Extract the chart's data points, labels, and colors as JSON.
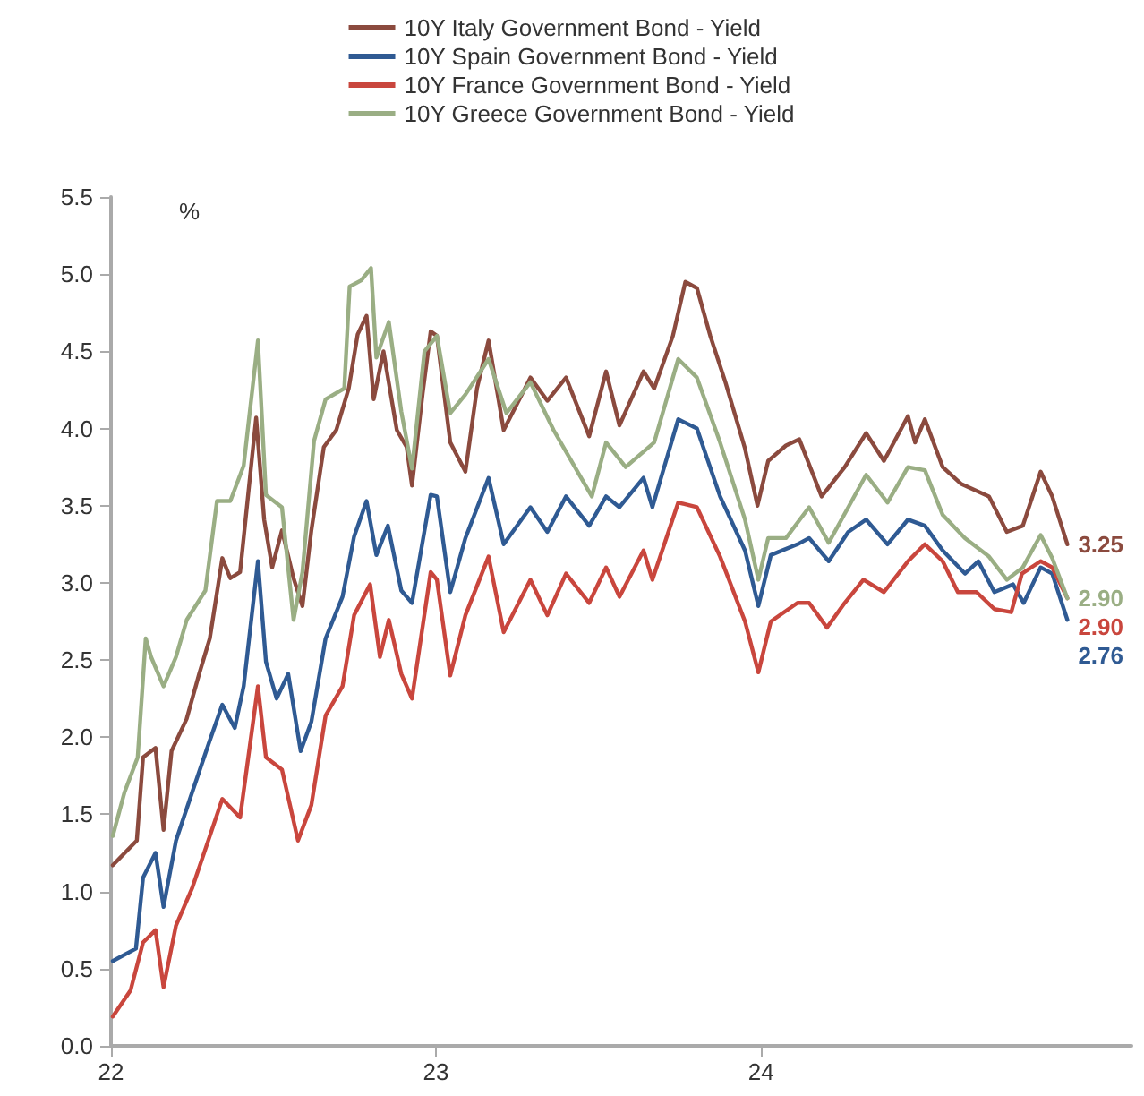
{
  "chart_data": {
    "type": "line",
    "ylabel": "%",
    "legend": "top",
    "grid": false,
    "marker": "none",
    "line_style": "solid",
    "xlim": [
      "2022-01-01",
      "2025-02-20"
    ],
    "xticks": [
      {
        "value": "2022-01-01",
        "label": "22"
      },
      {
        "value": "2023-01-01",
        "label": "23"
      },
      {
        "value": "2024-01-01",
        "label": "24"
      }
    ],
    "ylim": [
      0,
      5.5
    ],
    "yticks": [
      {
        "value": 0,
        "label": "0.0"
      },
      0.5,
      {
        "value": 1,
        "label": "1.0"
      },
      1.5,
      {
        "value": 2,
        "label": "2.0"
      },
      2.5,
      {
        "value": 3,
        "label": "3.0"
      },
      3.5,
      {
        "value": 4,
        "label": "4.0"
      },
      4.5,
      {
        "value": 5,
        "label": "5.0"
      },
      5.5
    ],
    "series": [
      {
        "name": "10Y Italy Government Bond - Yield",
        "color": "#8b4a3e",
        "x": [
          "2022-01-03",
          "2022-01-30",
          "2022-02-06",
          "2022-02-20",
          "2022-03-01",
          "2022-03-10",
          "2022-03-27",
          "2022-04-10",
          "2022-04-22",
          "2022-05-06",
          "2022-05-15",
          "2022-05-26",
          "2022-06-13",
          "2022-06-22",
          "2022-07-01",
          "2022-07-12",
          "2022-07-25",
          "2022-08-04",
          "2022-08-14",
          "2022-08-28",
          "2022-09-11",
          "2022-09-25",
          "2022-10-05",
          "2022-10-15",
          "2022-10-23",
          "2022-11-03",
          "2022-11-18",
          "2022-11-29",
          "2022-12-05",
          "2022-12-17",
          "2022-12-26",
          "2023-01-02",
          "2023-01-17",
          "2023-02-03",
          "2023-02-16",
          "2023-03-01",
          "2023-03-18",
          "2023-04-17",
          "2023-05-06",
          "2023-05-27",
          "2023-06-22",
          "2023-07-11",
          "2023-07-26",
          "2023-08-22",
          "2023-09-03",
          "2023-09-24",
          "2023-10-08",
          "2023-10-21",
          "2023-11-05",
          "2023-11-22",
          "2023-12-14",
          "2023-12-28",
          "2024-01-09",
          "2024-01-29",
          "2024-02-13",
          "2024-03-09",
          "2024-04-04",
          "2024-04-28",
          "2024-05-18",
          "2024-06-14",
          "2024-06-22",
          "2024-07-03",
          "2024-07-23",
          "2024-08-13",
          "2024-09-13",
          "2024-10-03",
          "2024-10-21",
          "2024-11-10",
          "2024-11-23",
          "2024-12-10"
        ],
        "values": [
          1.17,
          1.33,
          1.87,
          1.93,
          1.4,
          1.91,
          2.12,
          2.41,
          2.64,
          3.16,
          3.03,
          3.07,
          4.07,
          3.41,
          3.1,
          3.34,
          3.03,
          2.85,
          3.34,
          3.88,
          3.99,
          4.26,
          4.61,
          4.73,
          4.19,
          4.5,
          3.99,
          3.88,
          3.63,
          4.23,
          4.63,
          4.6,
          3.91,
          3.72,
          4.26,
          4.57,
          3.99,
          4.33,
          4.18,
          4.33,
          3.95,
          4.37,
          4.02,
          4.37,
          4.26,
          4.6,
          4.95,
          4.91,
          4.6,
          4.3,
          3.87,
          3.5,
          3.79,
          3.89,
          3.93,
          3.56,
          3.75,
          3.97,
          3.79,
          4.08,
          3.91,
          4.06,
          3.75,
          3.64,
          3.56,
          3.33,
          3.37,
          3.72,
          3.56,
          3.25
        ],
        "value_labels": [
          null,
          null,
          null,
          null,
          null,
          null,
          null,
          null,
          null,
          null,
          null,
          null,
          null,
          null,
          null,
          null,
          null,
          null,
          null,
          null,
          null,
          null,
          null,
          null,
          null,
          null,
          null,
          null,
          null,
          null,
          null,
          null,
          null,
          null,
          null,
          null,
          null,
          null,
          null,
          null,
          null,
          null,
          null,
          null,
          null,
          null,
          null,
          null,
          null,
          null,
          null,
          null,
          null,
          null,
          null,
          null,
          null,
          null,
          null,
          null,
          null,
          null,
          null,
          null,
          null,
          null,
          null,
          null,
          null,
          "3.25"
        ]
      },
      {
        "name": "10Y Spain Government Bond - Yield",
        "color": "#2f5a93",
        "x": [
          "2022-01-03",
          "2022-01-29",
          "2022-02-06",
          "2022-02-20",
          "2022-03-01",
          "2022-03-15",
          "2022-04-02",
          "2022-04-22",
          "2022-05-06",
          "2022-05-20",
          "2022-05-30",
          "2022-06-15",
          "2022-06-24",
          "2022-07-06",
          "2022-07-19",
          "2022-08-02",
          "2022-08-14",
          "2022-08-30",
          "2022-09-18",
          "2022-10-01",
          "2022-10-15",
          "2022-10-26",
          "2022-11-08",
          "2022-11-23",
          "2022-12-05",
          "2022-12-26",
          "2023-01-02",
          "2023-01-17",
          "2023-02-03",
          "2023-03-01",
          "2023-03-18",
          "2023-04-17",
          "2023-05-06",
          "2023-05-27",
          "2023-06-22",
          "2023-07-11",
          "2023-07-26",
          "2023-08-22",
          "2023-09-01",
          "2023-09-30",
          "2023-10-21",
          "2023-11-16",
          "2023-12-14",
          "2023-12-29",
          "2024-01-12",
          "2024-02-11",
          "2024-02-24",
          "2024-03-17",
          "2024-04-08",
          "2024-04-28",
          "2024-05-22",
          "2024-06-14",
          "2024-07-03",
          "2024-07-23",
          "2024-08-17",
          "2024-09-01",
          "2024-09-19",
          "2024-10-10",
          "2024-10-22",
          "2024-11-10",
          "2024-11-23",
          "2024-12-10"
        ],
        "values": [
          0.55,
          0.63,
          1.09,
          1.25,
          0.9,
          1.33,
          1.64,
          1.98,
          2.21,
          2.06,
          2.33,
          3.14,
          2.49,
          2.25,
          2.41,
          1.91,
          2.1,
          2.64,
          2.91,
          3.3,
          3.53,
          3.18,
          3.37,
          2.95,
          2.87,
          3.57,
          3.56,
          2.94,
          3.29,
          3.68,
          3.25,
          3.49,
          3.33,
          3.56,
          3.37,
          3.56,
          3.49,
          3.68,
          3.49,
          4.06,
          4.0,
          3.56,
          3.21,
          2.85,
          3.18,
          3.25,
          3.29,
          3.14,
          3.33,
          3.41,
          3.25,
          3.41,
          3.37,
          3.21,
          3.06,
          3.14,
          2.94,
          2.99,
          2.87,
          3.1,
          3.06,
          2.76
        ],
        "value_labels": [
          null,
          null,
          null,
          null,
          null,
          null,
          null,
          null,
          null,
          null,
          null,
          null,
          null,
          null,
          null,
          null,
          null,
          null,
          null,
          null,
          null,
          null,
          null,
          null,
          null,
          null,
          null,
          null,
          null,
          null,
          null,
          null,
          null,
          null,
          null,
          null,
          null,
          null,
          null,
          null,
          null,
          null,
          null,
          null,
          null,
          null,
          null,
          null,
          null,
          null,
          null,
          null,
          null,
          null,
          null,
          null,
          null,
          null,
          null,
          null,
          null,
          "2.76"
        ]
      },
      {
        "name": "10Y France Government Bond - Yield",
        "color": "#c9463d",
        "x": [
          "2022-01-03",
          "2022-01-23",
          "2022-02-06",
          "2022-02-20",
          "2022-03-01",
          "2022-03-15",
          "2022-04-02",
          "2022-04-22",
          "2022-05-06",
          "2022-05-26",
          "2022-06-15",
          "2022-06-24",
          "2022-07-12",
          "2022-07-30",
          "2022-08-14",
          "2022-08-30",
          "2022-09-18",
          "2022-10-01",
          "2022-10-19",
          "2022-10-30",
          "2022-11-09",
          "2022-11-23",
          "2022-12-05",
          "2022-12-26",
          "2023-01-02",
          "2023-01-17",
          "2023-02-03",
          "2023-03-01",
          "2023-03-18",
          "2023-04-17",
          "2023-05-06",
          "2023-05-27",
          "2023-06-22",
          "2023-07-11",
          "2023-07-26",
          "2023-08-22",
          "2023-09-01",
          "2023-09-30",
          "2023-10-21",
          "2023-11-16",
          "2023-12-14",
          "2023-12-29",
          "2024-01-12",
          "2024-02-11",
          "2024-02-24",
          "2024-03-15",
          "2024-04-04",
          "2024-04-25",
          "2024-05-18",
          "2024-06-14",
          "2024-07-03",
          "2024-07-23",
          "2024-08-09",
          "2024-08-30",
          "2024-09-19",
          "2024-10-08",
          "2024-10-20",
          "2024-11-10",
          "2024-11-23",
          "2024-12-10"
        ],
        "values": [
          0.19,
          0.36,
          0.67,
          0.75,
          0.38,
          0.78,
          1.02,
          1.36,
          1.6,
          1.48,
          2.33,
          1.87,
          1.79,
          1.33,
          1.56,
          2.14,
          2.33,
          2.79,
          2.99,
          2.52,
          2.76,
          2.41,
          2.25,
          3.07,
          3.02,
          2.4,
          2.79,
          3.17,
          2.68,
          3.02,
          2.79,
          3.06,
          2.87,
          3.1,
          2.91,
          3.21,
          3.02,
          3.52,
          3.49,
          3.17,
          2.75,
          2.42,
          2.75,
          2.87,
          2.87,
          2.71,
          2.87,
          3.02,
          2.94,
          3.14,
          3.25,
          3.14,
          2.94,
          2.94,
          2.83,
          2.81,
          3.06,
          3.14,
          3.1,
          2.9
        ],
        "value_labels": [
          null,
          null,
          null,
          null,
          null,
          null,
          null,
          null,
          null,
          null,
          null,
          null,
          null,
          null,
          null,
          null,
          null,
          null,
          null,
          null,
          null,
          null,
          null,
          null,
          null,
          null,
          null,
          null,
          null,
          null,
          null,
          null,
          null,
          null,
          null,
          null,
          null,
          null,
          null,
          null,
          null,
          null,
          null,
          null,
          null,
          null,
          null,
          null,
          null,
          null,
          null,
          null,
          null,
          null,
          null,
          null,
          null,
          null,
          null,
          "2.90"
        ]
      },
      {
        "name": "10Y Greece Government Bond - Yield",
        "color": "#9aae84",
        "x": [
          "2022-01-03",
          "2022-01-16",
          "2022-01-31",
          "2022-02-09",
          "2022-02-15",
          "2022-03-01",
          "2022-03-15",
          "2022-03-27",
          "2022-04-17",
          "2022-04-30",
          "2022-05-15",
          "2022-05-30",
          "2022-06-15",
          "2022-06-24",
          "2022-07-12",
          "2022-07-25",
          "2022-08-04",
          "2022-08-17",
          "2022-08-30",
          "2022-09-20",
          "2022-09-26",
          "2022-10-09",
          "2022-10-20",
          "2022-10-26",
          "2022-11-09",
          "2022-11-23",
          "2022-12-05",
          "2022-12-19",
          "2023-01-02",
          "2023-01-17",
          "2023-02-03",
          "2023-03-01",
          "2023-03-21",
          "2023-04-17",
          "2023-05-13",
          "2023-06-09",
          "2023-06-25",
          "2023-07-11",
          "2023-08-02",
          "2023-09-03",
          "2023-09-30",
          "2023-10-21",
          "2023-11-16",
          "2023-12-14",
          "2023-12-29",
          "2024-01-09",
          "2024-01-29",
          "2024-02-24",
          "2024-03-17",
          "2024-04-08",
          "2024-04-28",
          "2024-05-22",
          "2024-06-14",
          "2024-07-03",
          "2024-07-23",
          "2024-08-17",
          "2024-09-13",
          "2024-10-03",
          "2024-10-21",
          "2024-11-10",
          "2024-11-23",
          "2024-12-10"
        ],
        "values": [
          1.36,
          1.64,
          1.87,
          2.64,
          2.52,
          2.33,
          2.52,
          2.76,
          2.95,
          3.53,
          3.53,
          3.76,
          4.57,
          3.57,
          3.49,
          2.76,
          3.07,
          3.92,
          4.19,
          4.26,
          4.92,
          4.96,
          5.04,
          4.46,
          4.69,
          4.11,
          3.74,
          4.5,
          4.6,
          4.1,
          4.22,
          4.45,
          4.1,
          4.3,
          3.99,
          3.72,
          3.56,
          3.91,
          3.75,
          3.91,
          4.45,
          4.33,
          3.91,
          3.41,
          3.02,
          3.29,
          3.29,
          3.49,
          3.26,
          3.49,
          3.7,
          3.52,
          3.75,
          3.73,
          3.44,
          3.29,
          3.17,
          3.02,
          3.1,
          3.31,
          3.16,
          2.9
        ],
        "value_labels": [
          null,
          null,
          null,
          null,
          null,
          null,
          null,
          null,
          null,
          null,
          null,
          null,
          null,
          null,
          null,
          null,
          null,
          null,
          null,
          null,
          null,
          null,
          null,
          null,
          null,
          null,
          null,
          null,
          null,
          null,
          null,
          null,
          null,
          null,
          null,
          null,
          null,
          null,
          null,
          null,
          null,
          null,
          null,
          null,
          null,
          null,
          null,
          null,
          null,
          null,
          null,
          null,
          null,
          null,
          null,
          null,
          null,
          null,
          null,
          null,
          null,
          "2.90"
        ]
      }
    ]
  }
}
